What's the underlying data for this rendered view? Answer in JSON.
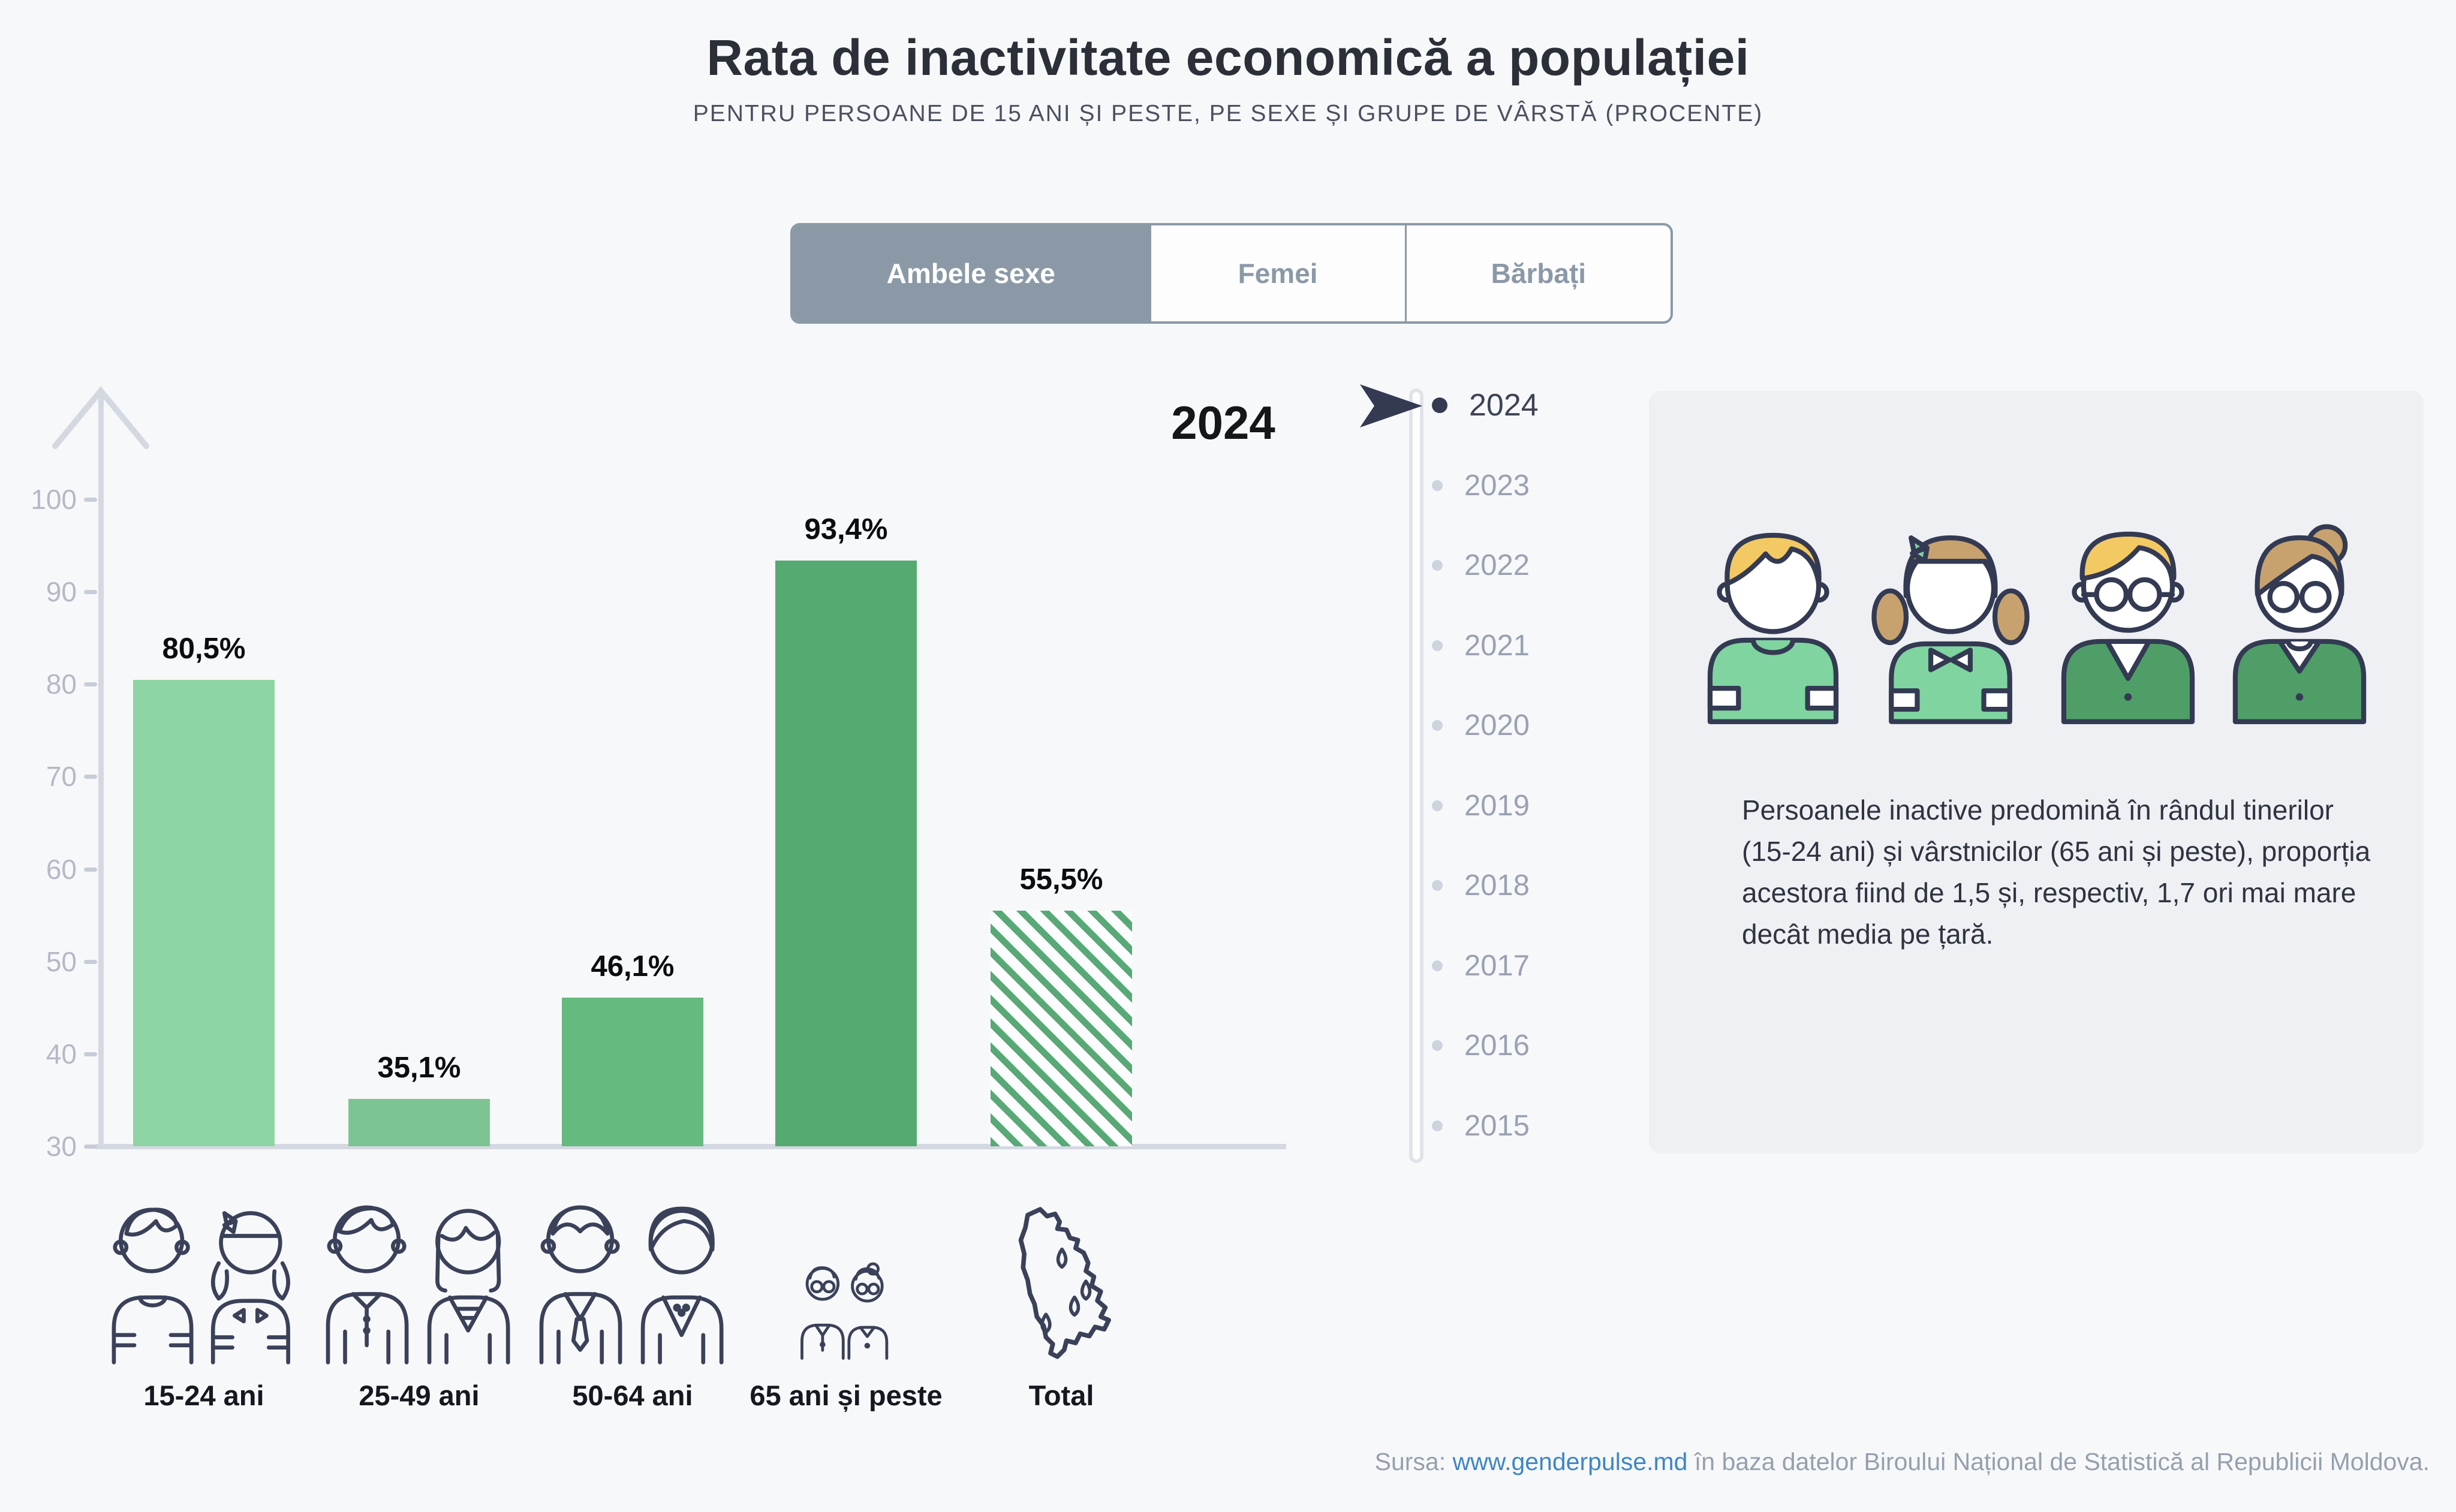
{
  "header": {
    "title": "Rata de inactivitate economică a populației",
    "subtitle": "PENTRU PERSOANE DE 15 ANI ȘI PESTE, PE SEXE ȘI GRUPE DE VÂRSTĂ (PROCENTE)"
  },
  "tabs": [
    {
      "label": "Ambele sexe",
      "selected": true
    },
    {
      "label": "Femei",
      "selected": false
    },
    {
      "label": "Bărbați",
      "selected": false
    }
  ],
  "chart_data": {
    "type": "bar",
    "title": "Rata de inactivitate economică a populației",
    "year_label": "2024",
    "categories": [
      "15-24 ani",
      "25-49 ani",
      "50-64 ani",
      "65 ani și peste",
      "Total"
    ],
    "values": [
      80.5,
      35.1,
      46.1,
      93.4,
      55.5
    ],
    "value_labels": [
      "80,5%",
      "35,1%",
      "46,1%",
      "93,4%",
      "55,5%"
    ],
    "ylim": [
      30,
      100
    ],
    "yticks": [
      30,
      40,
      50,
      60,
      70,
      80,
      90,
      100
    ],
    "grid": false,
    "legend_position": "none",
    "bar_colors": [
      "#8ed5a3",
      "#7cc492",
      "#65ba7f",
      "#55aa71",
      "#58a976"
    ],
    "hatched": [
      false,
      false,
      false,
      false,
      true
    ]
  },
  "timeline": {
    "years": [
      "2024",
      "2023",
      "2022",
      "2021",
      "2020",
      "2019",
      "2018",
      "2017",
      "2016",
      "2015"
    ],
    "selected": "2024"
  },
  "panel": {
    "text": "Persoanele inactive predomină în rândul tinerilor (15-24 ani) și vârstnicilor (65 ani și peste), proporția acestora fiind de 1,5 și, respectiv, 1,7 ori mai mare decât media pe țară.",
    "illustration": [
      "boy",
      "girl",
      "man-glasses",
      "woman-glasses"
    ]
  },
  "footer": {
    "prefix": "Sursa: ",
    "link": "www.genderpulse.md",
    "suffix": " în baza datelor Biroului Național de Statistică al Republicii Moldova."
  },
  "colors": {
    "background": "#f7f8fa",
    "accent_slate": "#8b99a7",
    "axis_gray": "#d4d9e1",
    "tick_text": "#b3bac6",
    "panel_bg": "#eef0f4",
    "outline_navy": "#333a52",
    "link_blue": "#3d86c5",
    "hair_yellow": "#f3c963",
    "hair_tan": "#c7a26e",
    "shirt_light_green": "#7fd4a0",
    "jacket_dark_green": "#4f9e68"
  }
}
